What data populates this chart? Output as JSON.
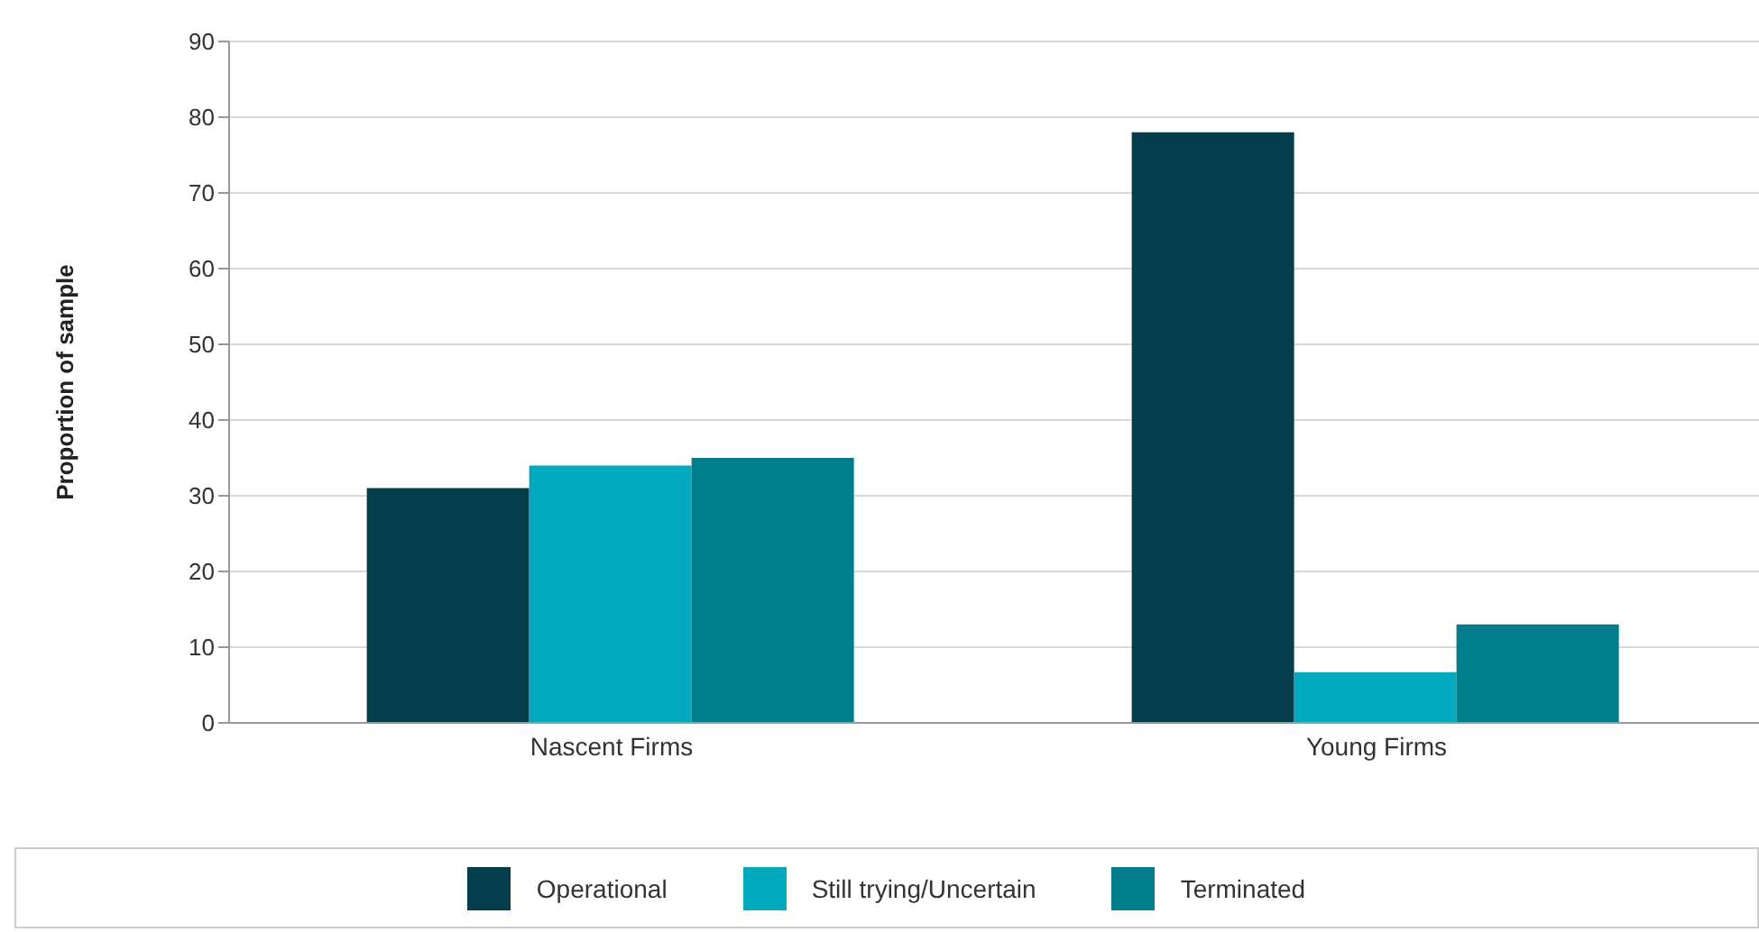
{
  "chart_data": {
    "type": "bar",
    "ylabel": "Proportion of sample",
    "categories": [
      "Nascent Firms",
      "Young Firms"
    ],
    "series": [
      {
        "name": "Operational",
        "color": "#033c4a",
        "values": [
          31,
          78
        ]
      },
      {
        "name": "Still trying/Uncertain",
        "color": "#00a9be",
        "values": [
          34,
          6.7
        ]
      },
      {
        "name": "Terminated",
        "color": "#007c8a",
        "values": [
          35,
          13
        ]
      }
    ],
    "ylim": [
      0,
      90
    ],
    "yticks": [
      0,
      10,
      20,
      30,
      40,
      50,
      60,
      70,
      80,
      90
    ],
    "grid": "y",
    "legend": "bottom"
  }
}
